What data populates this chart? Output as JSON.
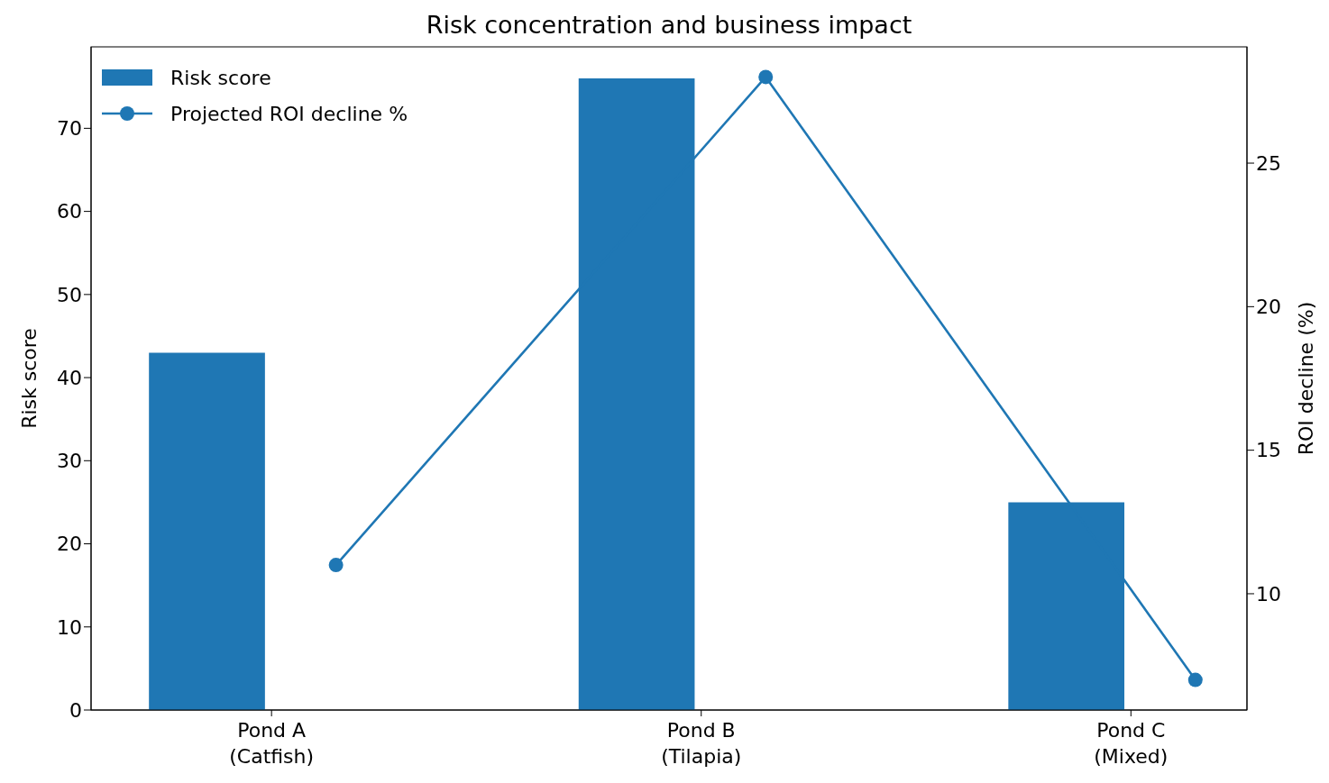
{
  "chart_data": {
    "type": "bar",
    "title": "Risk concentration and business impact",
    "ylabel": "Risk score",
    "y2label": "ROI decline (%)",
    "categories": [
      "Pond A\n(Catfish)",
      "Pond B\n(Tilapia)",
      "Pond C\n(Mixed)"
    ],
    "series": [
      {
        "name": "Risk score",
        "color": "#1f77b4",
        "values": [
          43,
          76,
          25
        ]
      },
      {
        "name": "Projected ROI decline %",
        "type": "line",
        "axis": "y2",
        "color": "#1f77b4",
        "values": [
          11,
          28,
          7
        ]
      }
    ],
    "ylim": [
      0,
      79.8
    ],
    "yticks": [
      0,
      10,
      20,
      30,
      40,
      50,
      60,
      70
    ],
    "y2lim": [
      5.95,
      29.05
    ],
    "y2ticks": [
      10,
      15,
      20,
      25
    ],
    "grid": false,
    "legend": "top left",
    "marker": "circle",
    "line_style": "solid"
  }
}
